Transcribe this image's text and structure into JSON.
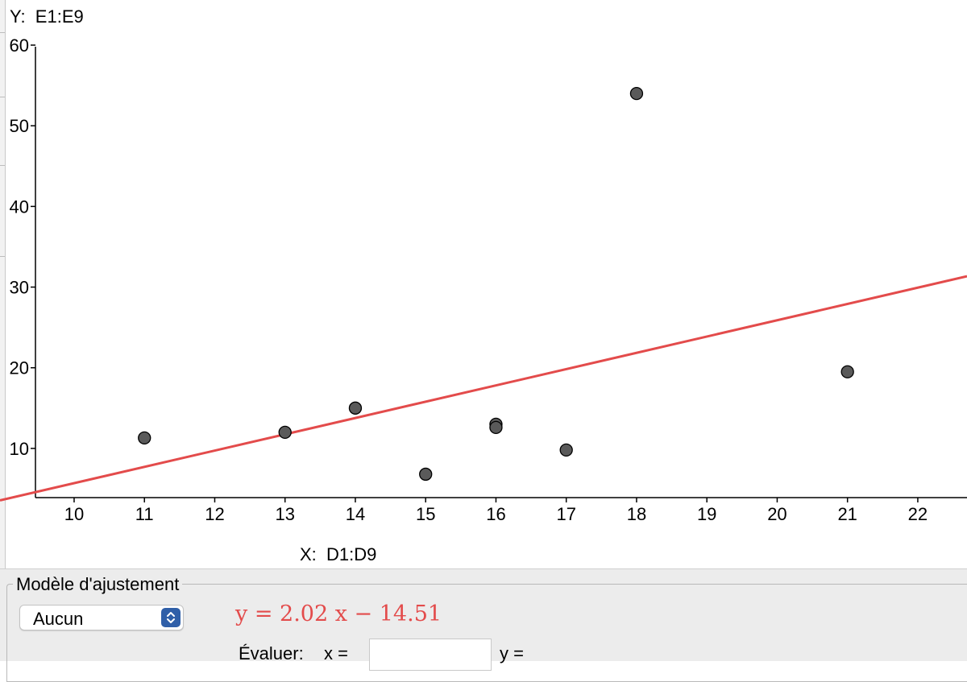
{
  "chart_data": {
    "type": "scatter",
    "xlabel": "X:  D1:D9",
    "ylabel": "Y:  E1:E9",
    "xlim": [
      9.45,
      22.7
    ],
    "ylim": [
      3.9,
      61.6
    ],
    "x_ticks": [
      10,
      11,
      12,
      13,
      14,
      15,
      16,
      17,
      18,
      19,
      20,
      21,
      22
    ],
    "y_ticks": [
      10,
      20,
      30,
      40,
      50,
      60
    ],
    "grid": false,
    "points": [
      {
        "x": 11,
        "y": 11.3
      },
      {
        "x": 13,
        "y": 12
      },
      {
        "x": 14,
        "y": 15
      },
      {
        "x": 15,
        "y": 6.8
      },
      {
        "x": 16,
        "y": 13
      },
      {
        "x": 16,
        "y": 12.6
      },
      {
        "x": 17,
        "y": 9.8
      },
      {
        "x": 18,
        "y": 54
      },
      {
        "x": 21,
        "y": 19.5
      }
    ],
    "fit_line": {
      "slope": 2.02,
      "intercept": -14.51,
      "color": "#e34b4b"
    },
    "point_color": "#5a5a5a"
  },
  "panel": {
    "title": "Modèle d'ajustement",
    "model_select": {
      "value": "Aucun"
    },
    "equation": "y = 2.02 x − 14.51",
    "evaluate_label": "Évaluer:",
    "x_label": "x =",
    "x_input_value": "",
    "y_label": "y ="
  }
}
